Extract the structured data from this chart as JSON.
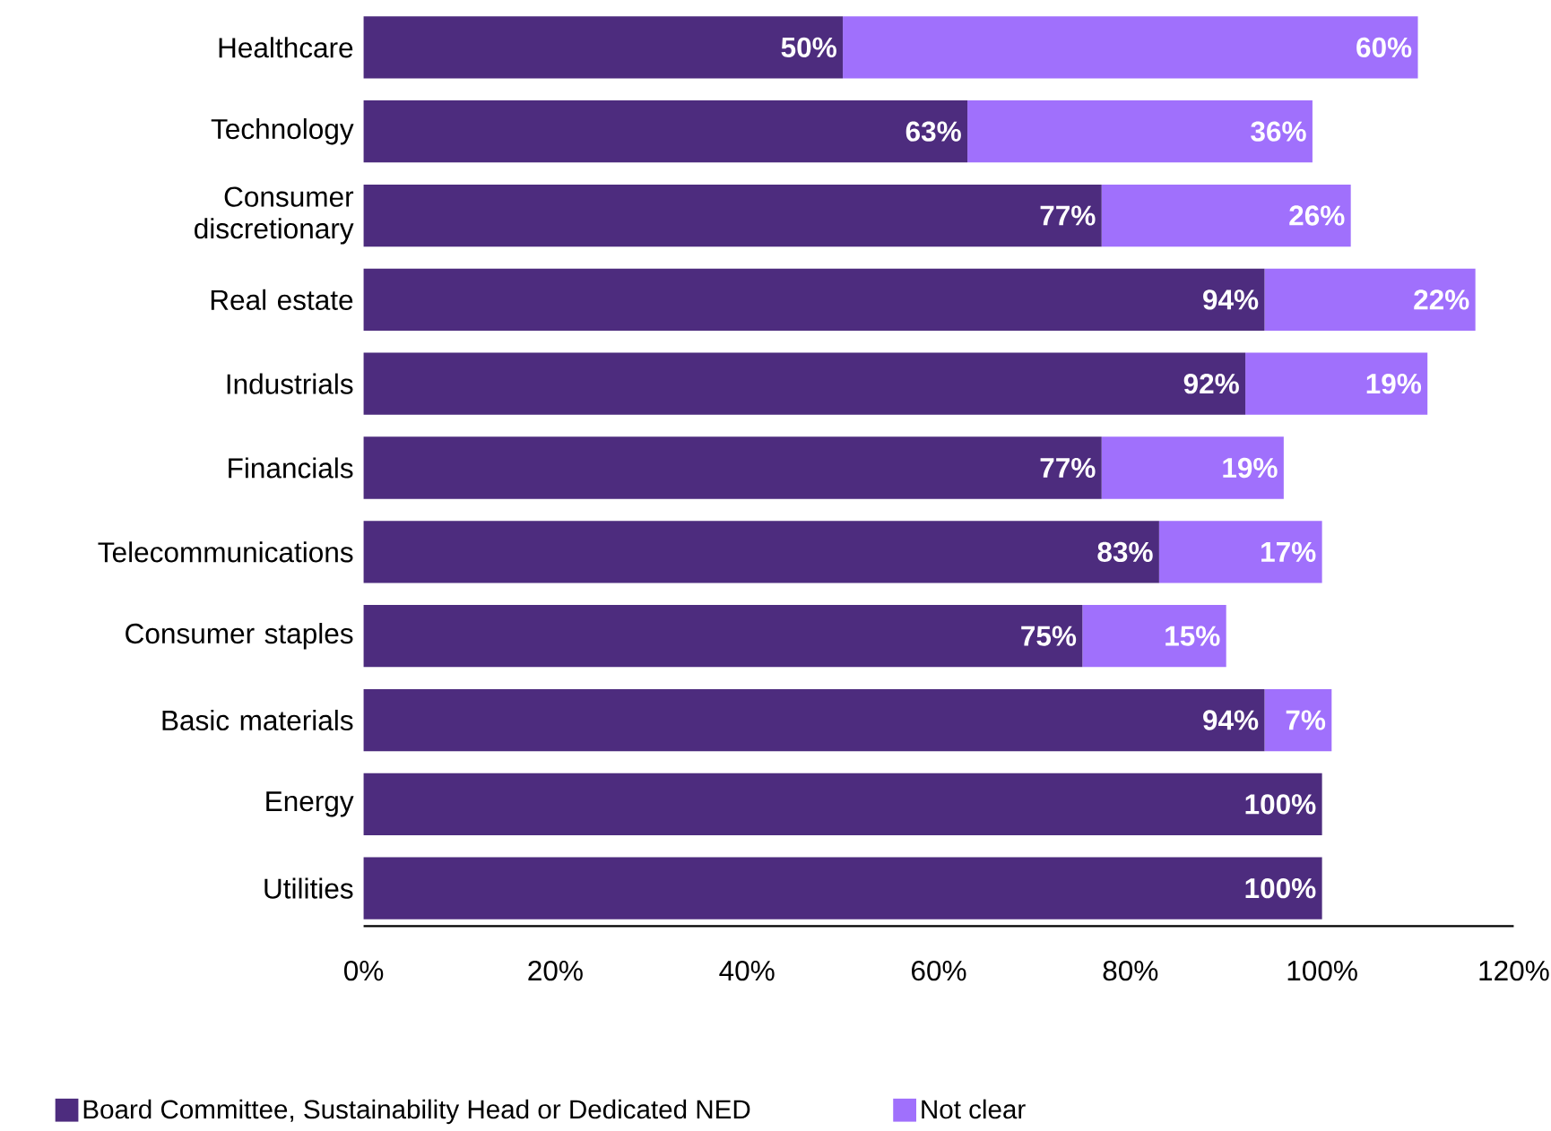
{
  "chart_data": {
    "type": "bar",
    "orientation": "horizontal",
    "stacked": true,
    "legend": "bottom",
    "categories": [
      "Healthcare",
      "Technology",
      "Consumer discretionary",
      "Real estate",
      "Industrials",
      "Financials",
      "Telecommunications",
      "Consumer staples",
      "Basic materials",
      "Energy",
      "Utilities"
    ],
    "series": [
      {
        "name": "Board Committee, Sustainability Head or Dedicated NED",
        "color": "#4d2c7e",
        "values": [
          50,
          63,
          77,
          94,
          92,
          77,
          83,
          75,
          94,
          100,
          100
        ],
        "value_labels": [
          "50%",
          "63%",
          "77%",
          "94%",
          "92%",
          "77%",
          "83%",
          "75%",
          "94%",
          "100%",
          "100%"
        ]
      },
      {
        "name": "Not clear",
        "color": "#a070fc",
        "values": [
          60,
          36,
          26,
          22,
          19,
          19,
          17,
          15,
          7,
          null,
          null
        ],
        "value_labels": [
          "60%",
          "36%",
          "26%",
          "22%",
          "19%",
          "19%",
          "17%",
          "15%",
          "7%",
          null,
          null
        ]
      }
    ],
    "xlim": [
      0,
      120
    ],
    "xticks": [
      {
        "value": 0,
        "label": "0%"
      },
      {
        "value": 20,
        "label": "20%"
      },
      {
        "value": 40,
        "label": "40%"
      },
      {
        "value": 60,
        "label": "60%"
      },
      {
        "value": 80,
        "label": "80%"
      },
      {
        "value": 100,
        "label": "100%"
      },
      {
        "value": 120,
        "label": "120%"
      }
    ],
    "grid": false
  }
}
